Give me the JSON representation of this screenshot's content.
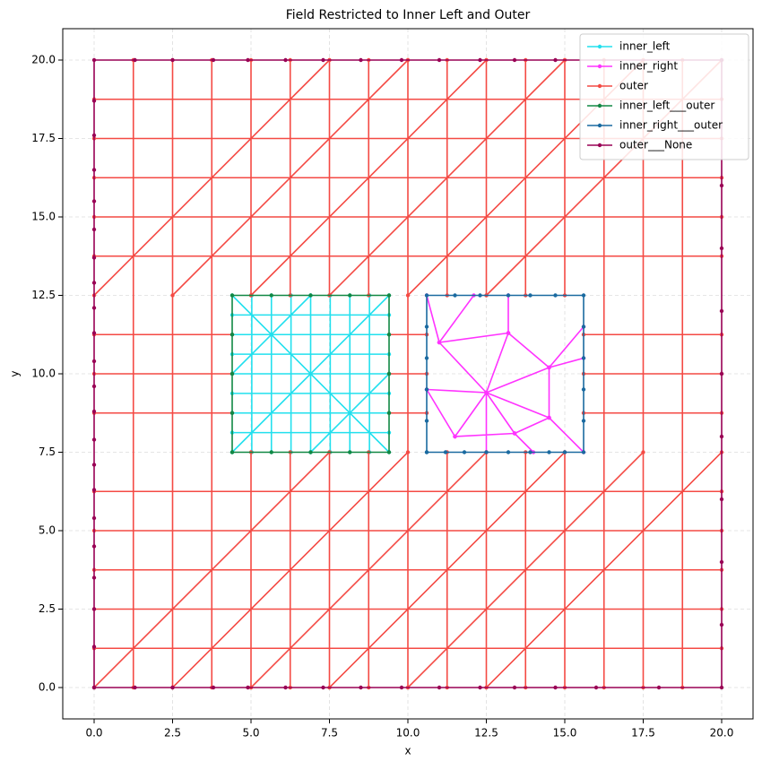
{
  "chart_data": {
    "type": "line",
    "title": "Field Restricted to Inner Left and Outer",
    "xlabel": "x",
    "ylabel": "y",
    "xlim": [
      -1,
      21
    ],
    "ylim": [
      -1,
      21
    ],
    "xticks": [
      {
        "value": 0,
        "label": "0.0"
      },
      2.5,
      {
        "value": 5,
        "label": "5.0"
      },
      7.5,
      {
        "value": 10,
        "label": "10.0"
      },
      12.5,
      {
        "value": 15,
        "label": "15.0"
      },
      17.5,
      {
        "value": 20,
        "label": "20.0"
      }
    ],
    "yticks": [
      {
        "value": 0,
        "label": "0.0"
      },
      2.5,
      {
        "value": 5,
        "label": "5.0"
      },
      7.5,
      {
        "value": 10,
        "label": "10.0"
      },
      12.5,
      {
        "value": 15,
        "label": "15.0"
      },
      17.5,
      {
        "value": 20,
        "label": "20.0"
      }
    ],
    "grid": true,
    "legend": "upper right",
    "series": [
      {
        "name": "inner_left",
        "color": "#22e0ee",
        "x": [
          4.4,
          9.4,
          null,
          4.4,
          9.4,
          null,
          4.4,
          9.4,
          null,
          4.4,
          9.4,
          null,
          4.4,
          9.4,
          null,
          4.4,
          9.4,
          null,
          4.4,
          9.4,
          null,
          5.025,
          5.025,
          null,
          5.65,
          5.65,
          null,
          6.275,
          6.275,
          null,
          6.9,
          6.9,
          null,
          7.525,
          7.525,
          null,
          8.15,
          8.15,
          null,
          8.775,
          8.775,
          null,
          4.4,
          9.4,
          null,
          4.4,
          6.9,
          null,
          6.9,
          9.4,
          null,
          4.4,
          9.4
        ],
        "values": [
          8.125,
          8.125,
          null,
          8.75,
          8.75,
          null,
          9.375,
          9.375,
          null,
          10,
          10,
          null,
          10.625,
          10.625,
          null,
          11.25,
          11.25,
          null,
          11.875,
          11.875,
          null,
          7.5,
          12.5,
          null,
          7.5,
          12.5,
          null,
          7.5,
          12.5,
          null,
          7.5,
          12.5,
          null,
          7.5,
          12.5,
          null,
          7.5,
          12.5,
          null,
          7.5,
          12.5,
          null,
          7.5,
          12.5,
          null,
          10,
          12.5,
          null,
          7.5,
          10,
          null,
          12.5,
          7.5
        ]
      },
      {
        "name": "inner_right",
        "color": "#ff33ff",
        "x": [
          12.5,
          11,
          null,
          12.5,
          13.2,
          null,
          12.5,
          14.5,
          null,
          12.5,
          14.5,
          null,
          12.5,
          13.4,
          null,
          12.5,
          12.5,
          null,
          12.5,
          11.5,
          null,
          12.5,
          10.6,
          null,
          11,
          13.2,
          null,
          13.2,
          14.5,
          null,
          14.5,
          14.5,
          null,
          14.5,
          13.4,
          null,
          13.4,
          11.5,
          null,
          11.5,
          10.6,
          null,
          13.2,
          13.2,
          null,
          14.5,
          15.6,
          null,
          14.5,
          15.6,
          null,
          11,
          10.6,
          null,
          11,
          12.1,
          null,
          14.5,
          15.6,
          null,
          13.4,
          14
        ],
        "values": [
          9.4,
          11,
          null,
          9.4,
          11.3,
          null,
          9.4,
          10.2,
          null,
          9.4,
          8.6,
          null,
          9.4,
          8.1,
          null,
          9.4,
          7.5,
          null,
          9.4,
          8,
          null,
          9.4,
          9.5,
          null,
          11,
          11.3,
          null,
          11.3,
          10.2,
          null,
          10.2,
          8.6,
          null,
          8.6,
          8.1,
          null,
          8.1,
          8,
          null,
          8,
          9.5,
          null,
          11.3,
          12.5,
          null,
          10.2,
          11.5,
          null,
          10.2,
          10.5,
          null,
          11,
          12.5,
          null,
          11,
          12.5,
          null,
          8.6,
          7.5,
          null,
          8.1,
          7.5
        ]
      },
      {
        "name": "outer",
        "color": "#f44a44",
        "x": [
          0,
          20,
          null,
          0,
          20,
          null,
          0,
          20,
          null,
          0,
          20,
          null,
          0,
          20,
          null,
          0,
          20,
          null,
          0,
          20,
          null,
          0,
          20,
          null,
          0,
          20,
          null,
          0,
          20,
          null,
          0,
          4.4,
          null,
          9.4,
          10.6,
          null,
          15.6,
          20,
          null,
          0,
          4.4,
          null,
          9.4,
          10.6,
          null,
          15.6,
          20,
          null,
          0,
          4.4,
          null,
          9.4,
          10.6,
          null,
          15.6,
          20,
          null,
          1.25,
          1.25,
          null,
          2.5,
          2.5,
          null,
          3.75,
          3.75,
          null,
          10,
          10,
          null,
          16.25,
          16.25,
          null,
          17.5,
          17.5,
          null,
          18.75,
          18.75,
          null,
          5,
          5,
          null,
          5,
          5,
          null,
          6.25,
          6.25,
          null,
          6.25,
          6.25,
          null,
          7.5,
          7.5,
          null,
          7.5,
          7.5,
          null,
          8.75,
          8.75,
          null,
          8.75,
          8.75,
          null,
          11.25,
          11.25,
          null,
          11.25,
          11.25,
          null,
          12.5,
          12.5,
          null,
          12.5,
          12.5,
          null,
          13.75,
          13.75,
          null,
          13.75,
          13.75,
          null,
          15,
          15,
          null,
          15,
          15,
          null,
          0,
          7.5,
          null,
          2.5,
          10,
          null,
          5,
          12.5,
          null,
          7.5,
          15,
          null,
          10,
          17.5,
          null,
          12.5,
          20,
          null,
          0,
          7.5,
          null,
          2.5,
          10,
          null,
          5,
          12.5,
          null,
          7.5,
          15,
          null,
          10,
          17.5,
          null,
          12.5,
          20
        ],
        "values": [
          1.25,
          1.25,
          null,
          2.5,
          2.5,
          null,
          3.75,
          3.75,
          null,
          5,
          5,
          null,
          6.25,
          6.25,
          null,
          13.75,
          13.75,
          null,
          15,
          15,
          null,
          16.25,
          16.25,
          null,
          17.5,
          17.5,
          null,
          18.75,
          18.75,
          null,
          8.75,
          8.75,
          null,
          8.75,
          8.75,
          null,
          8.75,
          8.75,
          null,
          10,
          10,
          null,
          10,
          10,
          null,
          10,
          10,
          null,
          11.25,
          11.25,
          null,
          11.25,
          11.25,
          null,
          11.25,
          11.25,
          null,
          0,
          20,
          null,
          0,
          20,
          null,
          0,
          20,
          null,
          0,
          20,
          null,
          0,
          20,
          null,
          0,
          20,
          null,
          0,
          20,
          null,
          0,
          7.5,
          null,
          12.5,
          20,
          null,
          0,
          7.5,
          null,
          12.5,
          20,
          null,
          0,
          7.5,
          null,
          12.5,
          20,
          null,
          0,
          7.5,
          null,
          12.5,
          20,
          null,
          0,
          7.5,
          null,
          12.5,
          20,
          null,
          0,
          7.5,
          null,
          12.5,
          20,
          null,
          0,
          7.5,
          null,
          12.5,
          20,
          null,
          0,
          7.5,
          null,
          12.5,
          20,
          null,
          0,
          7.5,
          null,
          0,
          7.5,
          null,
          0,
          7.5,
          null,
          0,
          7.5,
          null,
          0,
          7.5,
          null,
          0,
          7.5,
          null,
          12.5,
          20,
          null,
          12.5,
          20,
          null,
          12.5,
          20,
          null,
          12.5,
          20,
          null,
          12.5,
          20,
          null,
          12.5,
          20
        ]
      },
      {
        "name": "inner_left___outer",
        "color": "#118844",
        "x": [
          4.4,
          5.65,
          6.9,
          8.15,
          9.4,
          9.4,
          9.4,
          9.4,
          9.4,
          8.15,
          6.9,
          5.65,
          4.4,
          4.4,
          4.4,
          4.4,
          4.4
        ],
        "values": [
          7.5,
          7.5,
          7.5,
          7.5,
          7.5,
          8.75,
          10,
          11.25,
          12.5,
          12.5,
          12.5,
          12.5,
          12.5,
          11.25,
          10,
          8.75,
          7.5
        ]
      },
      {
        "name": "inner_right___outer",
        "color": "#1a6aa0",
        "x": [
          10.6,
          11.2,
          11.8,
          12.5,
          13.2,
          13.9,
          14.5,
          15,
          15.6,
          15.6,
          15.6,
          15.6,
          15.6,
          15.6,
          14.7,
          13.9,
          13.2,
          12.3,
          11.5,
          10.6,
          10.6,
          10.6,
          10.6,
          10.6,
          10.6
        ],
        "values": [
          7.5,
          7.5,
          7.5,
          7.5,
          7.5,
          7.5,
          7.5,
          7.5,
          7.5,
          8.5,
          9.5,
          10.5,
          11.5,
          12.5,
          12.5,
          12.5,
          12.5,
          12.5,
          12.5,
          12.5,
          11.5,
          10.5,
          9.5,
          8.5,
          7.5
        ]
      },
      {
        "name": "outer___None",
        "color": "#990055",
        "x": [
          0,
          1.3,
          2.5,
          3.8,
          4.9,
          6.1,
          7.3,
          8.5,
          9.8,
          11,
          12.3,
          13.4,
          14.7,
          16,
          18,
          20,
          20,
          20,
          20,
          20,
          20,
          20,
          20,
          20,
          20,
          14.7,
          13.4,
          12.3,
          11,
          9.8,
          8.5,
          7.3,
          6.1,
          4.9,
          3.8,
          2.5,
          1.3,
          0,
          0,
          0,
          0,
          0,
          0,
          0,
          0,
          0,
          0,
          0,
          0,
          0,
          0,
          0,
          0,
          0,
          0,
          0,
          0,
          0,
          0
        ],
        "values": [
          0,
          0,
          0,
          0,
          0,
          0,
          0,
          0,
          0,
          0,
          0,
          0,
          0,
          0,
          0,
          0,
          2,
          4,
          6,
          8,
          10,
          12,
          14,
          16,
          20,
          20,
          20,
          20,
          20,
          20,
          20,
          20,
          20,
          20,
          20,
          20,
          20,
          20,
          18.7,
          17.6,
          16.5,
          15.5,
          14.6,
          13.7,
          12.9,
          12.1,
          11.3,
          10.4,
          9.6,
          8.8,
          7.9,
          7.1,
          6.3,
          5.4,
          4.5,
          3.5,
          2.5,
          1.3,
          0
        ]
      }
    ]
  }
}
